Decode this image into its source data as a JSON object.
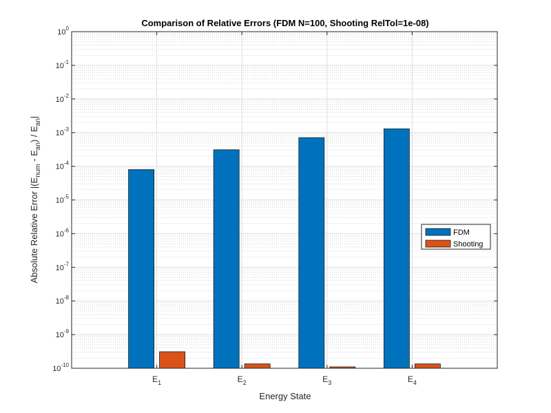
{
  "chart_data": {
    "type": "bar",
    "title": "Comparison of Relative Errors (FDM N=100, Shooting RelTol=1e-08)",
    "xlabel": "Energy State",
    "ylabel": "Absolute Relative Error |(E_num - E_an) / E_an|",
    "yscale": "log",
    "ylim": [
      1e-10,
      1
    ],
    "yticks": [
      {
        "base": "10",
        "exp": "-10"
      },
      {
        "base": "10",
        "exp": "-9"
      },
      {
        "base": "10",
        "exp": "-8"
      },
      {
        "base": "10",
        "exp": "-7"
      },
      {
        "base": "10",
        "exp": "-6"
      },
      {
        "base": "10",
        "exp": "-5"
      },
      {
        "base": "10",
        "exp": "-4"
      },
      {
        "base": "10",
        "exp": "-3"
      },
      {
        "base": "10",
        "exp": "-2"
      },
      {
        "base": "10",
        "exp": "-1"
      },
      {
        "base": "10",
        "exp": "0"
      }
    ],
    "categories": [
      {
        "base": "E",
        "sub": "1"
      },
      {
        "base": "E",
        "sub": "2"
      },
      {
        "base": "E",
        "sub": "3"
      },
      {
        "base": "E",
        "sub": "4"
      }
    ],
    "series": [
      {
        "name": "FDM",
        "color": "#0072BD",
        "values": [
          8e-05,
          0.00031,
          0.00071,
          0.0013
        ]
      },
      {
        "name": "Shooting",
        "color": "#D95319",
        "values": [
          3.1e-10,
          1.35e-10,
          1.1e-10,
          1.35e-10
        ]
      }
    ],
    "grid": true,
    "minor_grid": true,
    "legend_position": "right"
  }
}
